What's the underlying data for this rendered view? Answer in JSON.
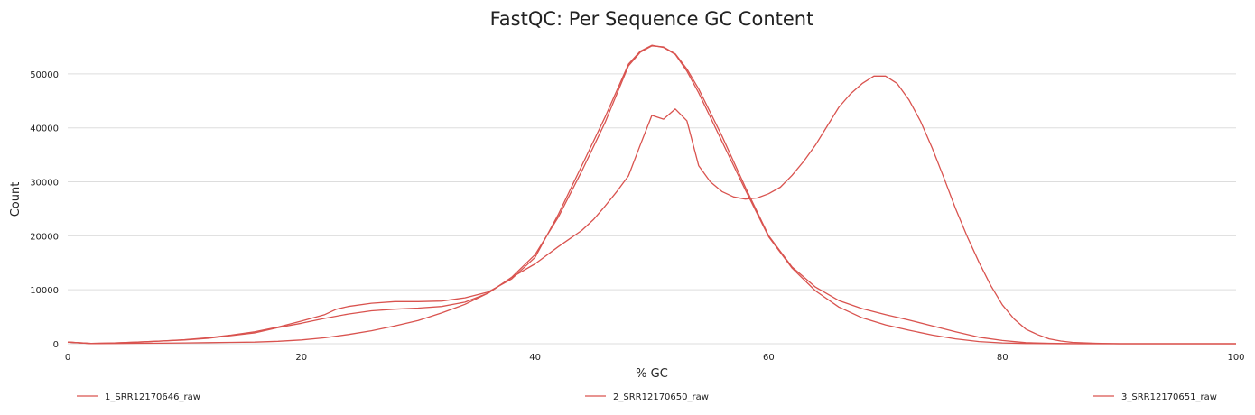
{
  "chart_data": {
    "type": "line",
    "title": "FastQC: Per Sequence GC Content",
    "xlabel": "% GC",
    "ylabel": "Count",
    "xlim": [
      0,
      100
    ],
    "ylim": [
      0,
      57000
    ],
    "xticks": [
      0,
      20,
      40,
      60,
      80,
      100
    ],
    "yticks": [
      0,
      10000,
      20000,
      30000,
      40000,
      50000
    ],
    "grid": true,
    "legend_position": "bottom",
    "series": [
      {
        "name": "1_SRR12170646_raw",
        "color": "#d9534f",
        "points": [
          [
            0,
            300
          ],
          [
            2,
            50
          ],
          [
            4,
            150
          ],
          [
            6,
            300
          ],
          [
            8,
            500
          ],
          [
            10,
            700
          ],
          [
            12,
            1000
          ],
          [
            14,
            1500
          ],
          [
            16,
            2000
          ],
          [
            18,
            3000
          ],
          [
            20,
            3800
          ],
          [
            22,
            4700
          ],
          [
            24,
            5500
          ],
          [
            26,
            6100
          ],
          [
            28,
            6400
          ],
          [
            30,
            6600
          ],
          [
            32,
            6900
          ],
          [
            34,
            7700
          ],
          [
            36,
            9400
          ],
          [
            38,
            12300
          ],
          [
            40,
            16500
          ],
          [
            42,
            23500
          ],
          [
            44,
            32000
          ],
          [
            46,
            41000
          ],
          [
            48,
            51500
          ],
          [
            49,
            54000
          ],
          [
            50,
            55200
          ],
          [
            51,
            55000
          ],
          [
            52,
            53700
          ],
          [
            53,
            50900
          ],
          [
            54,
            47200
          ],
          [
            56,
            38500
          ],
          [
            58,
            29000
          ],
          [
            60,
            20000
          ],
          [
            62,
            14200
          ],
          [
            64,
            10500
          ],
          [
            66,
            8000
          ],
          [
            68,
            6500
          ],
          [
            70,
            5400
          ],
          [
            72,
            4400
          ],
          [
            74,
            3300
          ],
          [
            76,
            2200
          ],
          [
            78,
            1200
          ],
          [
            80,
            600
          ],
          [
            82,
            200
          ],
          [
            84,
            80
          ],
          [
            86,
            20
          ],
          [
            90,
            0
          ],
          [
            100,
            0
          ]
        ]
      },
      {
        "name": "2_SRR12170650_raw",
        "color": "#d9534f",
        "points": [
          [
            0,
            300
          ],
          [
            2,
            50
          ],
          [
            4,
            150
          ],
          [
            6,
            300
          ],
          [
            8,
            500
          ],
          [
            10,
            750
          ],
          [
            12,
            1100
          ],
          [
            14,
            1600
          ],
          [
            16,
            2200
          ],
          [
            18,
            3100
          ],
          [
            20,
            4200
          ],
          [
            22,
            5400
          ],
          [
            23,
            6400
          ],
          [
            24,
            6900
          ],
          [
            26,
            7500
          ],
          [
            28,
            7800
          ],
          [
            30,
            7800
          ],
          [
            32,
            7900
          ],
          [
            34,
            8500
          ],
          [
            36,
            9600
          ],
          [
            38,
            12000
          ],
          [
            40,
            16000
          ],
          [
            42,
            24000
          ],
          [
            44,
            33000
          ],
          [
            46,
            42000
          ],
          [
            48,
            51800
          ],
          [
            49,
            54200
          ],
          [
            50,
            55300
          ],
          [
            51,
            54900
          ],
          [
            52,
            53600
          ],
          [
            53,
            50500
          ],
          [
            54,
            46500
          ],
          [
            56,
            37500
          ],
          [
            58,
            28500
          ],
          [
            60,
            19800
          ],
          [
            62,
            14000
          ],
          [
            64,
            9800
          ],
          [
            66,
            6800
          ],
          [
            68,
            4800
          ],
          [
            70,
            3500
          ],
          [
            72,
            2500
          ],
          [
            74,
            1600
          ],
          [
            76,
            900
          ],
          [
            78,
            400
          ],
          [
            80,
            150
          ],
          [
            82,
            50
          ],
          [
            85,
            0
          ],
          [
            100,
            0
          ]
        ]
      },
      {
        "name": "3_SRR12170651_raw",
        "color": "#d9534f",
        "points": [
          [
            0,
            300
          ],
          [
            2,
            20
          ],
          [
            4,
            50
          ],
          [
            6,
            80
          ],
          [
            8,
            100
          ],
          [
            10,
            150
          ],
          [
            12,
            200
          ],
          [
            14,
            250
          ],
          [
            16,
            300
          ],
          [
            18,
            450
          ],
          [
            20,
            700
          ],
          [
            22,
            1100
          ],
          [
            24,
            1700
          ],
          [
            26,
            2400
          ],
          [
            28,
            3300
          ],
          [
            30,
            4300
          ],
          [
            32,
            5700
          ],
          [
            34,
            7300
          ],
          [
            36,
            9400
          ],
          [
            38,
            12300
          ],
          [
            40,
            14800
          ],
          [
            42,
            18000
          ],
          [
            44,
            21000
          ],
          [
            45,
            23000
          ],
          [
            46,
            25500
          ],
          [
            47,
            28200
          ],
          [
            48,
            31100
          ],
          [
            49,
            36800
          ],
          [
            50,
            42300
          ],
          [
            51,
            41600
          ],
          [
            52,
            43500
          ],
          [
            53,
            41300
          ],
          [
            54,
            33000
          ],
          [
            55,
            30000
          ],
          [
            56,
            28200
          ],
          [
            57,
            27200
          ],
          [
            58,
            26800
          ],
          [
            59,
            27000
          ],
          [
            60,
            27800
          ],
          [
            61,
            29000
          ],
          [
            62,
            31200
          ],
          [
            63,
            33800
          ],
          [
            64,
            36800
          ],
          [
            65,
            40300
          ],
          [
            66,
            43800
          ],
          [
            67,
            46300
          ],
          [
            68,
            48200
          ],
          [
            69,
            49600
          ],
          [
            70,
            49600
          ],
          [
            71,
            48200
          ],
          [
            72,
            45200
          ],
          [
            73,
            41200
          ],
          [
            74,
            36200
          ],
          [
            75,
            30700
          ],
          [
            76,
            25000
          ],
          [
            77,
            19800
          ],
          [
            78,
            15100
          ],
          [
            79,
            10800
          ],
          [
            80,
            7200
          ],
          [
            81,
            4600
          ],
          [
            82,
            2700
          ],
          [
            83,
            1700
          ],
          [
            84,
            900
          ],
          [
            85,
            500
          ],
          [
            86,
            250
          ],
          [
            88,
            80
          ],
          [
            90,
            0
          ],
          [
            100,
            0
          ]
        ]
      }
    ]
  }
}
